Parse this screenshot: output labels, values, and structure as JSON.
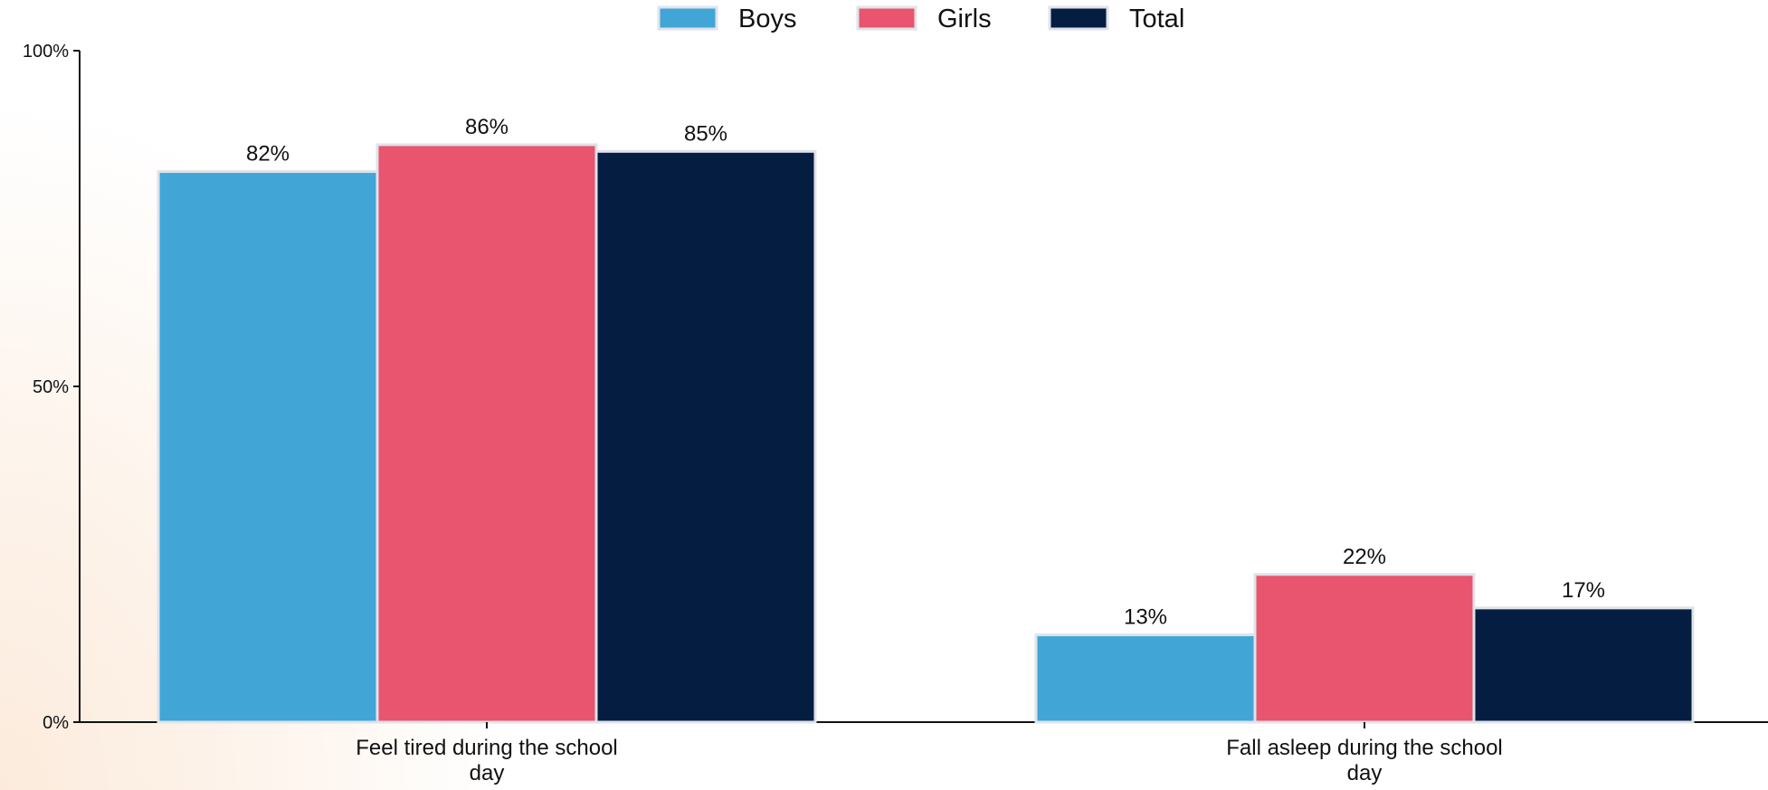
{
  "chart_data": {
    "type": "bar",
    "categories": [
      [
        "Feel tired during the school",
        "day"
      ],
      [
        "Fall asleep during the school",
        "day"
      ]
    ],
    "series": [
      {
        "name": "Boys",
        "color": "#41a6d6",
        "values": [
          82,
          13
        ],
        "labels": [
          "82%",
          "13%"
        ]
      },
      {
        "name": "Girls",
        "color": "#e9546f",
        "values": [
          86,
          22
        ],
        "labels": [
          "86%",
          "22%"
        ]
      },
      {
        "name": "Total",
        "color": "#061d42",
        "values": [
          85,
          17
        ],
        "labels": [
          "85%",
          "17%"
        ]
      }
    ],
    "ylim": [
      0,
      100
    ],
    "yticks": [
      0,
      50,
      100
    ],
    "ytick_labels": [
      "0%",
      "50%",
      "100%"
    ],
    "legend_position": "top-center",
    "grid": false
  }
}
